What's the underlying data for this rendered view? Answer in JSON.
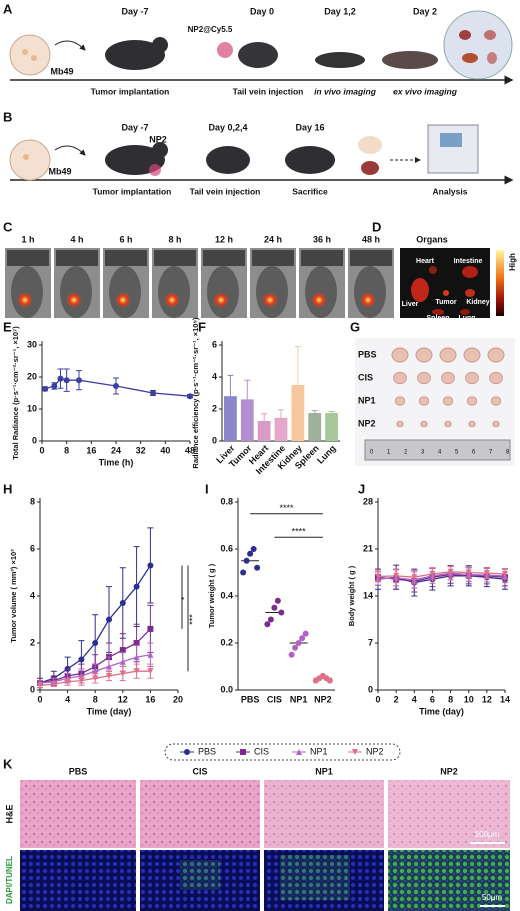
{
  "panel_labels": [
    "A",
    "B",
    "C",
    "D",
    "E",
    "F",
    "G",
    "H",
    "I",
    "J",
    "K"
  ],
  "panel_a": {
    "cell": "Mb49",
    "agent": "NP2@Cy5.5",
    "days": [
      "Day -7",
      "Day 0",
      "Day 1,2",
      "Day 2"
    ],
    "steps": [
      "Tumor implantation",
      "Tail vein injection",
      "in vivo imaging",
      "ex vivo imaging"
    ]
  },
  "panel_b": {
    "cell": "Mb49",
    "agent": "NP2",
    "days": [
      "Day -7",
      "Day 0,2,4",
      "Day 16"
    ],
    "steps": [
      "Tumor implantation",
      "Tail vein injection",
      "Sacrifice",
      "Analysis"
    ]
  },
  "panel_c": {
    "times": [
      "1 h",
      "4 h",
      "6 h",
      "8 h",
      "12 h",
      "24 h",
      "36 h",
      "48 h"
    ]
  },
  "panel_d": {
    "title": "Organs",
    "organs": [
      "Heart",
      "Intestine",
      "Liver",
      "Tumor",
      "Kidney",
      "Spleen",
      "Lung"
    ],
    "scale": "High"
  },
  "panel_g": {
    "groups": [
      "PBS",
      "CIS",
      "NP1",
      "NP2"
    ],
    "ruler": [
      0,
      1,
      2,
      3,
      4,
      5,
      6,
      7,
      8
    ]
  },
  "panel_k": {
    "columns": [
      "PBS",
      "CIS",
      "NP1",
      "NP2"
    ],
    "rows": [
      "H&E",
      "DAPI/TUNEL"
    ],
    "scale_bars": [
      "100μm",
      "50μm"
    ]
  },
  "chart_data": [
    {
      "type": "line",
      "xlabel": "Time (h)",
      "ylabel": "Total Radiance (p·s⁻¹·cm⁻²·sr⁻¹, ×10⁷)",
      "x": [
        1,
        4,
        6,
        8,
        12,
        24,
        36,
        48
      ],
      "values": [
        16.3,
        17.2,
        19.5,
        19,
        19,
        17.2,
        15,
        14
      ],
      "errors": [
        0.6,
        1,
        3,
        3.5,
        3,
        2.5,
        0.8,
        0.5
      ],
      "color": "#3b3fa0",
      "xlim": [
        0,
        48
      ],
      "xticks": [
        0,
        8,
        16,
        24,
        32,
        40,
        48
      ],
      "ylim": [
        0,
        30
      ],
      "yticks": [
        0,
        10,
        20,
        30
      ]
    },
    {
      "type": "bar",
      "ylabel": "Radiance efficiency (p·s⁻¹·cm⁻²·sr⁻¹, ×10⁹)",
      "categories": [
        "Liver",
        "Tumor",
        "Heart",
        "Intestine",
        "Kidney",
        "Spleen",
        "Lung"
      ],
      "values": [
        2.8,
        2.6,
        1.25,
        1.45,
        3.5,
        1.75,
        1.75
      ],
      "errors": [
        1.3,
        1.2,
        0.45,
        0.5,
        2.4,
        0.15,
        0.1
      ],
      "colors": [
        "#8b86c9",
        "#b48fd0",
        "#d79cc7",
        "#e6a8c9",
        "#f7c8a0",
        "#9eaf9a",
        "#a8c89a"
      ],
      "ylim": [
        0,
        6
      ],
      "yticks": [
        0,
        2,
        4,
        6
      ]
    },
    {
      "type": "line",
      "xlabel": "Time (day)",
      "ylabel": "Tumor volume ( mm³) ×10³",
      "x": [
        0,
        2,
        4,
        6,
        8,
        10,
        12,
        14,
        16
      ],
      "series": [
        {
          "name": "PBS",
          "color": "#2b2f8f",
          "marker": "circle",
          "values": [
            0.3,
            0.5,
            0.9,
            1.3,
            2,
            3,
            3.7,
            4.4,
            5.3
          ],
          "errors": [
            0.2,
            0.3,
            0.5,
            0.8,
            1.2,
            1.4,
            1.5,
            1.7,
            1.6
          ]
        },
        {
          "name": "CIS",
          "color": "#7b2d8e",
          "marker": "square",
          "values": [
            0.3,
            0.4,
            0.6,
            0.7,
            1,
            1.4,
            1.7,
            2,
            2.6
          ],
          "errors": [
            0.1,
            0.2,
            0.3,
            0.4,
            0.5,
            0.6,
            0.7,
            0.8,
            1
          ]
        },
        {
          "name": "NP1",
          "color": "#b063c5",
          "marker": "triangle",
          "values": [
            0.3,
            0.35,
            0.5,
            0.6,
            0.8,
            1,
            1.2,
            1.4,
            1.5
          ],
          "errors": [
            0.1,
            0.15,
            0.2,
            0.3,
            0.3,
            0.4,
            0.4,
            0.5,
            0.5
          ]
        },
        {
          "name": "NP2",
          "color": "#e0708a",
          "marker": "down",
          "values": [
            0.2,
            0.25,
            0.35,
            0.4,
            0.5,
            0.6,
            0.7,
            0.8,
            0.8
          ],
          "errors": [
            0.1,
            0.1,
            0.15,
            0.2,
            0.2,
            0.2,
            0.3,
            0.3,
            0.3
          ]
        }
      ],
      "xlim": [
        0,
        20
      ],
      "xticks": [
        0,
        4,
        8,
        12,
        16,
        20
      ],
      "ylim": [
        0,
        8
      ],
      "yticks": [
        0,
        2,
        4,
        6,
        8
      ],
      "annotations": [
        "*",
        "***"
      ]
    },
    {
      "type": "dot",
      "ylabel": "Tumor weight ( g )",
      "categories": [
        "PBS",
        "CIS",
        "NP1",
        "NP2"
      ],
      "points": [
        [
          0.5,
          0.55,
          0.58,
          0.6,
          0.52
        ],
        [
          0.28,
          0.3,
          0.35,
          0.38,
          0.33
        ],
        [
          0.15,
          0.18,
          0.2,
          0.22,
          0.24
        ],
        [
          0.04,
          0.05,
          0.06,
          0.05,
          0.04
        ]
      ],
      "means": [
        0.55,
        0.33,
        0.2,
        0.05
      ],
      "colors": [
        "#2b2f8f",
        "#7b2d8e",
        "#b063c5",
        "#e0708a"
      ],
      "ylim": [
        0,
        0.8
      ],
      "yticks": [
        {
          "value": 0,
          "label": "0.0"
        },
        0.2,
        0.4,
        0.6,
        0.8
      ],
      "annotations": [
        "****",
        "****"
      ]
    },
    {
      "type": "line",
      "xlabel": "Time (day)",
      "ylabel": "Body weight ( g )",
      "x": [
        0,
        2,
        4,
        6,
        8,
        10,
        12,
        14
      ],
      "series": [
        {
          "name": "PBS",
          "color": "#2b2f8f",
          "marker": "circle",
          "values": [
            16.5,
            16.8,
            16,
            16.5,
            17,
            17,
            16.8,
            16.5
          ],
          "errors": [
            1.5,
            1.8,
            2,
            1.6,
            1.5,
            1.5,
            1.4,
            1.5
          ]
        },
        {
          "name": "CIS",
          "color": "#7b2d8e",
          "marker": "square",
          "values": [
            16.8,
            16.5,
            16.2,
            16.8,
            17.2,
            17,
            17,
            16.8
          ],
          "errors": [
            1.2,
            1.5,
            1.6,
            1.4,
            1.3,
            1.2,
            1.2,
            1.3
          ]
        },
        {
          "name": "NP1",
          "color": "#b063c5",
          "marker": "triangle",
          "values": [
            16.6,
            16.7,
            16.4,
            17,
            17.4,
            17.2,
            17.1,
            17
          ],
          "errors": [
            1,
            1.2,
            1.2,
            1.1,
            1,
            1,
            1,
            1
          ]
        },
        {
          "name": "NP2",
          "color": "#e0708a",
          "marker": "down",
          "values": [
            16.9,
            17,
            16.8,
            17.3,
            17.6,
            17.5,
            17.4,
            17.3
          ],
          "errors": [
            0.8,
            1,
            1,
            0.9,
            0.8,
            0.8,
            0.8,
            0.8
          ]
        }
      ],
      "xlim": [
        0,
        14
      ],
      "xticks": [
        0,
        2,
        4,
        6,
        8,
        10,
        12,
        14
      ],
      "ylim": [
        0,
        28
      ],
      "yticks": [
        0,
        7,
        14,
        21,
        28
      ]
    }
  ]
}
